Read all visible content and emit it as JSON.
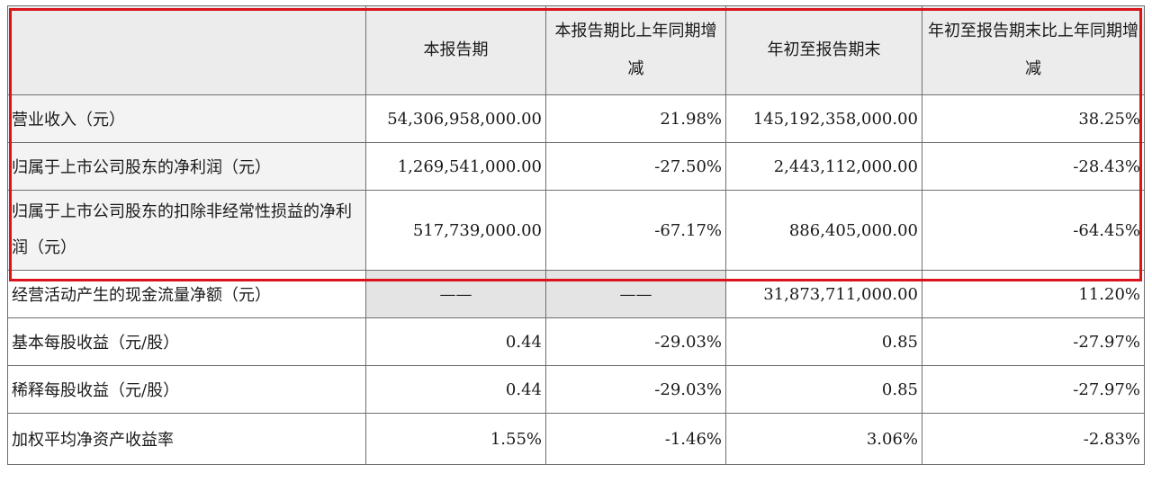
{
  "table": {
    "headers": [
      "",
      "本报告期",
      "本报告期比上年同期增减",
      "年初至报告期末",
      "年初至报告期末比上年同期增减"
    ],
    "rows": [
      {
        "label": "营业收入（元）",
        "cells": [
          "54,306,958,000.00",
          "21.98%",
          "145,192,358,000.00",
          "38.25%"
        ]
      },
      {
        "label": "归属于上市公司股东的净利润（元）",
        "cells": [
          "1,269,541,000.00",
          "-27.50%",
          "2,443,112,000.00",
          "-28.43%"
        ]
      },
      {
        "label": "归属于上市公司股东的扣除非经常性损益的净利润（元）",
        "cells": [
          "517,739,000.00",
          "-67.17%",
          "886,405,000.00",
          "-64.45%"
        ]
      },
      {
        "label": "经营活动产生的现金流量净额（元）",
        "cells": [
          "——",
          "——",
          "31,873,711,000.00",
          "11.20%"
        ]
      },
      {
        "label": "基本每股收益（元/股）",
        "cells": [
          "0.44",
          "-29.03%",
          "0.85",
          "-27.97%"
        ]
      },
      {
        "label": "稀释每股收益（元/股）",
        "cells": [
          "0.44",
          "-29.03%",
          "0.85",
          "-27.97%"
        ]
      },
      {
        "label": "加权平均净资产收益率",
        "cells": [
          "1.55%",
          "-1.46%",
          "3.06%",
          "-2.83%"
        ]
      }
    ]
  },
  "highlight": {
    "color": "#d9141b"
  }
}
